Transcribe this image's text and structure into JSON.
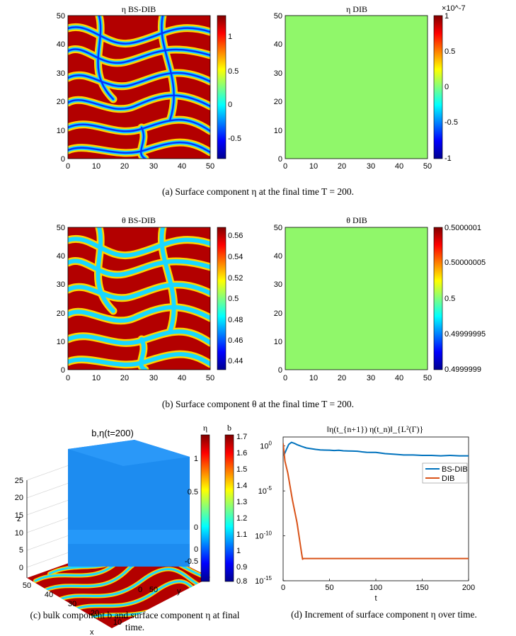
{
  "colors": {
    "uniform_green": "#90f76a",
    "bsdib_line": "#0072bd",
    "dib_line": "#d95319",
    "wall": "#1d8cf0"
  },
  "panel_a": {
    "left_title": "η BS-DIB",
    "right_title": "η DIB",
    "x_ticks": [
      "0",
      "10",
      "20",
      "30",
      "40",
      "50"
    ],
    "y_ticks": [
      "0",
      "10",
      "20",
      "30",
      "40",
      "50"
    ],
    "left_cbar_ticks": [
      "1",
      "0.5",
      "0",
      "-0.5"
    ],
    "right_cbar_exponent": "×10^-7",
    "right_cbar_ticks": [
      "1",
      "0.5",
      "0",
      "-0.5",
      "-1"
    ],
    "caption": "(a) Surface component η at the final time T = 200."
  },
  "panel_b": {
    "left_title": "θ BS-DIB",
    "right_title": "θ DIB",
    "x_ticks": [
      "0",
      "10",
      "20",
      "30",
      "40",
      "50"
    ],
    "y_ticks": [
      "0",
      "10",
      "20",
      "30",
      "40",
      "50"
    ],
    "left_cbar_ticks": [
      "0.56",
      "0.54",
      "0.52",
      "0.5",
      "0.48",
      "0.46",
      "0.44"
    ],
    "right_cbar_ticks": [
      "0.5000001",
      "0.50000005",
      "0.5",
      "0.49999995",
      "0.4999999"
    ],
    "caption": "(b) Surface component θ at the final time T = 200."
  },
  "panel_c": {
    "title": "b,η(t=200)",
    "z_label": "z",
    "x_label": "x",
    "y_label": "y",
    "z_ticks": [
      "0",
      "5",
      "10",
      "15",
      "20",
      "25"
    ],
    "x_ticks": [
      "50",
      "40",
      "30",
      "20",
      "10",
      "0"
    ],
    "y_ticks": [
      "0",
      "50"
    ],
    "eta_cbar_label": "η",
    "eta_cbar_ticks": [
      "1",
      "0.5",
      "0",
      "-0.5"
    ],
    "b_cbar_label": "b",
    "b_cbar_ticks": [
      "1.7",
      "1.6",
      "1.5",
      "1.4",
      "1.3",
      "1.2",
      "1.1",
      "1",
      "0.9",
      "0.8"
    ],
    "caption_line1": "(c) bulk component b and surface component η at final",
    "caption_line2": "time."
  },
  "panel_d": {
    "title": "‖η(t_{n+1})    η(t_n)‖_{L²(Γ)}",
    "x_label": "t",
    "legend": [
      "BS-DIB",
      "DIB"
    ],
    "caption": "(d) Increment of surface component η over time."
  },
  "chart_data": [
    {
      "type": "heatmap",
      "title": "η BS-DIB",
      "xlim": [
        0,
        50
      ],
      "ylim": [
        0,
        50
      ],
      "colorbar_range": [
        -0.8,
        1.35
      ],
      "pattern": "labyrinthine stripes"
    },
    {
      "type": "heatmap",
      "title": "η DIB",
      "xlim": [
        0,
        50
      ],
      "ylim": [
        0,
        50
      ],
      "colorbar_range": [
        -1e-07,
        1e-07
      ],
      "uniform_value": 0
    },
    {
      "type": "heatmap",
      "title": "θ BS-DIB",
      "xlim": [
        0,
        50
      ],
      "ylim": [
        0,
        50
      ],
      "colorbar_range": [
        0.433,
        0.565
      ],
      "pattern": "labyrinthine stripes"
    },
    {
      "type": "heatmap",
      "title": "θ DIB",
      "xlim": [
        0,
        50
      ],
      "ylim": [
        0,
        50
      ],
      "colorbar_range": [
        0.4999999,
        0.5000001
      ],
      "uniform_value": 0.5
    },
    {
      "type": "line",
      "title": "‖η(t_{n+1}) − η(t_n)‖_{L²(Γ)}",
      "xlabel": "t",
      "ylabel": "",
      "xlim": [
        0,
        200
      ],
      "yscale": "log",
      "ylim": [
        1e-15,
        10
      ],
      "x_ticks": [
        0,
        50,
        100,
        150,
        200
      ],
      "y_ticks": [
        1e-15,
        1e-10,
        1e-05,
        1
      ],
      "y_tick_labels": [
        "10^-15",
        "10^-10",
        "10^-5",
        "10^0"
      ],
      "series": [
        {
          "name": "BS-DIB",
          "color": "#0072bd",
          "x": [
            0,
            1,
            3,
            6,
            9,
            12,
            15,
            20,
            25,
            30,
            35,
            40,
            45,
            50,
            55,
            60,
            65,
            70,
            75,
            80,
            85,
            90,
            95,
            100,
            110,
            120,
            130,
            140,
            150,
            160,
            170,
            180,
            190,
            200
          ],
          "y": [
            1,
            0.1,
            0.3,
            1.5,
            2.5,
            2.0,
            1.4,
            0.9,
            0.6,
            0.5,
            0.42,
            0.36,
            0.35,
            0.34,
            0.31,
            0.33,
            0.29,
            0.28,
            0.27,
            0.26,
            0.22,
            0.2,
            0.19,
            0.19,
            0.14,
            0.12,
            0.1,
            0.1,
            0.09,
            0.09,
            0.08,
            0.09,
            0.08,
            0.08
          ]
        },
        {
          "name": "DIB",
          "color": "#d95319",
          "x": [
            0,
            2,
            5,
            10,
            15,
            20,
            21,
            22,
            30,
            50,
            75,
            100,
            125,
            150,
            175,
            200
          ],
          "y": [
            2,
            0.02,
            0.001,
            1e-06,
            3e-09,
            1e-12,
            2.5e-13,
            3e-13,
            3e-13,
            3e-13,
            3e-13,
            3e-13,
            3e-13,
            3e-13,
            3e-13,
            3e-13
          ]
        }
      ]
    }
  ]
}
